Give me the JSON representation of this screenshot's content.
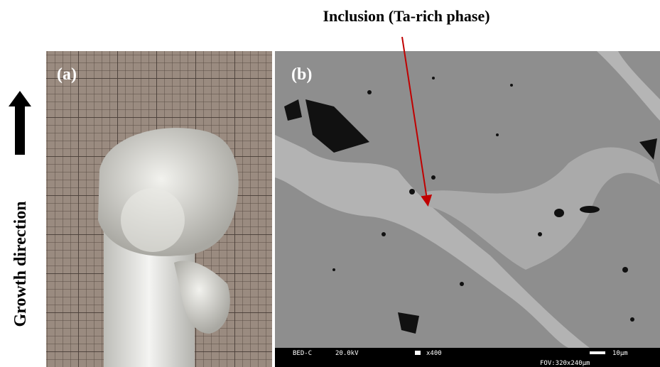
{
  "annotation": "Inclusion (Ta-rich phase)",
  "panels": [
    {
      "label": "(a)"
    },
    {
      "label": "(b)"
    }
  ],
  "axis_label": "Growth direction",
  "sem_bar": {
    "detector": "BED-C",
    "voltage": "20.0kV",
    "magnification": "x400",
    "scale": "10μm",
    "fov": "FOV:320x240μm"
  }
}
